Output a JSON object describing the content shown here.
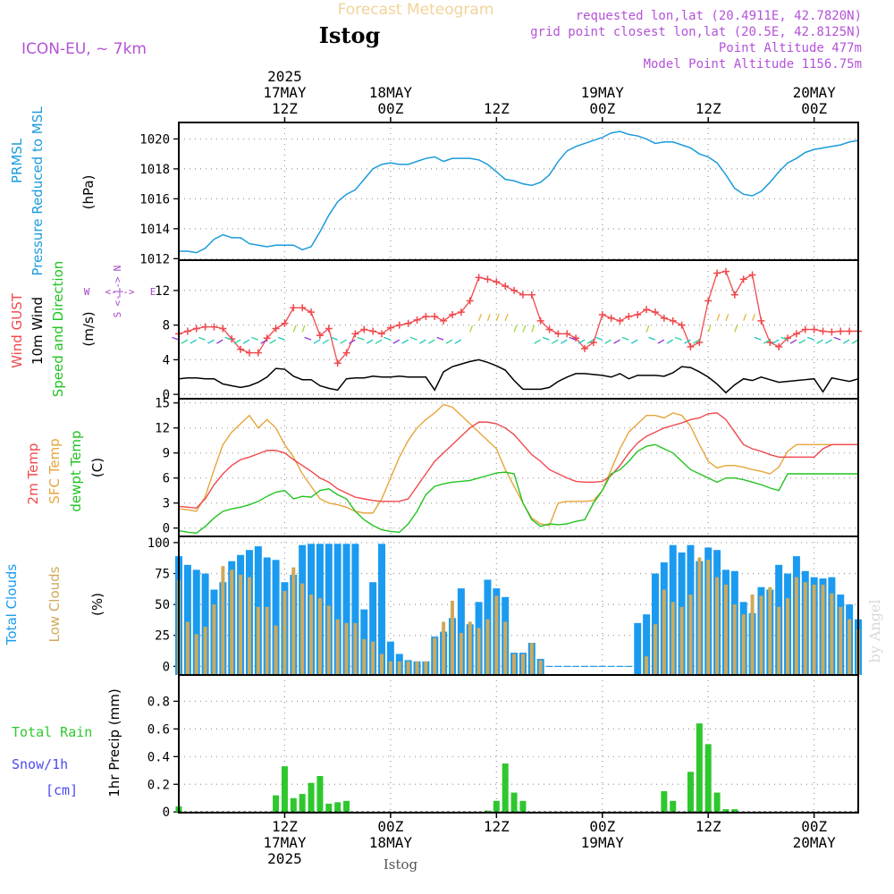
{
  "header": {
    "chart_type_label": "Forecast Meteogram",
    "location": "Istog",
    "model": "ICON-EU, ~ 7km",
    "requested": "requested lon,lat (20.4911E, 42.7820N)",
    "grid_point": "grid point closest lon,lat (20.5E, 42.8125N)",
    "point_altitude": "Point Altitude 477m",
    "model_altitude": "Model Point Altitude 1156.75m",
    "footer_location": "Istog",
    "watermark": "by Angel"
  },
  "colors": {
    "pressure": "#1b9bdc",
    "gust": "#f0484c",
    "wind": "#000000",
    "temp2m": "#f0484c",
    "sfc_temp": "#e6a53c",
    "dewpt": "#22c322",
    "total_clouds": "#1b9bf0",
    "low_clouds": "#cfa95a",
    "rain": "#2ec82e",
    "snow": "#4b4bf0",
    "label_purple": "#b452d8",
    "direction": "#a045c8"
  },
  "time_axis": {
    "top": [
      {
        "t": 12,
        "lines": [
          "2025",
          "17MAY",
          "12Z"
        ]
      },
      {
        "t": 24,
        "lines": [
          "18MAY",
          "00Z"
        ]
      },
      {
        "t": 36,
        "lines": [
          "12Z"
        ]
      },
      {
        "t": 48,
        "lines": [
          "19MAY",
          "00Z"
        ]
      },
      {
        "t": 60,
        "lines": [
          "12Z"
        ]
      },
      {
        "t": 72,
        "lines": [
          "20MAY",
          "00Z"
        ]
      }
    ],
    "bottom": [
      {
        "t": 12,
        "lines": [
          "12Z",
          "17MAY",
          "2025"
        ]
      },
      {
        "t": 24,
        "lines": [
          "00Z",
          "18MAY"
        ]
      },
      {
        "t": 36,
        "lines": [
          "12Z"
        ]
      },
      {
        "t": 48,
        "lines": [
          "00Z",
          "19MAY"
        ]
      },
      {
        "t": 60,
        "lines": [
          "12Z"
        ]
      },
      {
        "t": 72,
        "lines": [
          "00Z",
          "20MAY"
        ]
      }
    ]
  },
  "chart_data": [
    {
      "type": "line",
      "panel": "pressure",
      "title": "PRMSL Pressure Reduced to MSL",
      "ylabel": "(hPa)",
      "ylim": [
        1011.9,
        1021.1
      ],
      "yticks": [
        1012,
        1014,
        1016,
        1018,
        1020
      ],
      "x_hours_from_17may_00z": [
        0,
        1,
        2,
        3,
        4,
        5,
        6,
        7,
        8,
        9,
        10,
        11,
        12,
        13,
        14,
        15,
        16,
        17,
        18,
        19,
        20,
        21,
        22,
        23,
        24,
        25,
        26,
        27,
        28,
        29,
        30,
        31,
        32,
        33,
        34,
        35,
        36,
        37,
        38,
        39,
        40,
        41,
        42,
        43,
        44,
        45,
        46,
        47,
        48,
        49,
        50,
        51,
        52,
        53,
        54,
        55,
        56,
        57,
        58,
        59,
        60,
        61,
        62,
        63,
        64,
        65,
        66,
        67,
        68,
        69,
        70,
        71,
        72,
        73,
        74,
        75,
        76,
        77
      ],
      "series": [
        {
          "name": "PRMSL",
          "values": [
            1012.5,
            1012.5,
            1012.4,
            1012.7,
            1013.3,
            1013.6,
            1013.4,
            1013.4,
            1013.0,
            1012.9,
            1012.8,
            1012.9,
            1012.9,
            1012.9,
            1012.6,
            1012.8,
            1013.8,
            1014.9,
            1015.8,
            1016.3,
            1016.6,
            1017.3,
            1018.0,
            1018.3,
            1018.4,
            1018.3,
            1018.3,
            1018.5,
            1018.7,
            1018.8,
            1018.5,
            1018.7,
            1018.7,
            1018.7,
            1018.6,
            1018.3,
            1017.8,
            1017.3,
            1017.2,
            1017.0,
            1016.9,
            1017.1,
            1017.6,
            1018.5,
            1019.2,
            1019.5,
            1019.7,
            1019.9,
            1020.1,
            1020.4,
            1020.5,
            1020.3,
            1020.2,
            1020.0,
            1019.7,
            1019.8,
            1019.8,
            1019.6,
            1019.4,
            1019.0,
            1018.8,
            1018.4,
            1017.6,
            1016.7,
            1016.3,
            1016.2,
            1016.5,
            1017.1,
            1017.8,
            1018.4,
            1018.7,
            1019.1,
            1019.3,
            1019.4,
            1019.5,
            1019.6,
            1019.8,
            1019.9
          ]
        }
      ]
    },
    {
      "type": "line",
      "panel": "wind",
      "title": "Wind GUST / 10m Wind Speed and Direction",
      "ylabel": "(m/s)",
      "ylim": [
        -0.5,
        15.5
      ],
      "yticks": [
        0,
        4,
        8,
        12
      ],
      "direction_legend": [
        "N",
        "S",
        "W",
        "E"
      ],
      "series": [
        {
          "name": "Wind GUST",
          "values": [
            7.0,
            7.3,
            7.6,
            7.8,
            7.8,
            7.6,
            6.4,
            5.2,
            4.8,
            4.8,
            6.5,
            7.6,
            8.2,
            10.0,
            10.0,
            9.5,
            6.8,
            7.6,
            3.6,
            4.8,
            7.0,
            7.5,
            7.3,
            7.0,
            7.7,
            8.0,
            8.2,
            8.6,
            9.0,
            9.0,
            8.5,
            9.2,
            9.5,
            10.8,
            13.5,
            13.3,
            13.0,
            12.5,
            12.0,
            11.5,
            11.5,
            8.5,
            7.5,
            7.0,
            7.0,
            6.5,
            5.3,
            6.0,
            9.2,
            8.8,
            8.5,
            9.0,
            9.2,
            9.8,
            9.5,
            8.8,
            8.5,
            8.0,
            5.5,
            6.0,
            10.8,
            14.0,
            14.2,
            11.5,
            13.3,
            13.8,
            8.5,
            6.0,
            5.5,
            6.5,
            7.0,
            7.5,
            7.5,
            7.3,
            7.2,
            7.3,
            7.3,
            7.3
          ]
        },
        {
          "name": "10m Wind",
          "values": [
            1.8,
            1.9,
            1.9,
            1.8,
            1.8,
            1.2,
            1.0,
            0.8,
            1.0,
            1.4,
            2.0,
            3.0,
            2.9,
            2.1,
            1.7,
            1.7,
            1.0,
            0.7,
            0.5,
            1.8,
            1.9,
            1.9,
            2.1,
            2.0,
            2.0,
            2.1,
            2.0,
            2.0,
            2.0,
            0.5,
            2.6,
            3.2,
            3.5,
            3.8,
            4.0,
            3.7,
            3.3,
            2.8,
            1.6,
            0.6,
            0.6,
            0.6,
            0.8,
            1.5,
            2.0,
            2.4,
            2.4,
            2.3,
            2.2,
            2.0,
            2.4,
            1.8,
            2.2,
            2.2,
            2.2,
            2.1,
            2.5,
            3.2,
            3.1,
            2.6,
            2.0,
            1.2,
            0.2,
            1.1,
            1.8,
            1.6,
            2.0,
            1.7,
            1.4,
            1.5,
            1.6,
            1.7,
            1.8,
            0.3,
            1.9,
            1.7,
            1.5,
            1.8
          ]
        }
      ]
    },
    {
      "type": "line",
      "panel": "temperature",
      "title": "2m Temp / SFC Temp / dewpt Temp",
      "ylabel": "(C)",
      "ylim": [
        -1.0,
        15.5
      ],
      "yticks": [
        0,
        3,
        6,
        9,
        12,
        15
      ],
      "series": [
        {
          "name": "2m Temp",
          "values": [
            2.6,
            2.5,
            2.4,
            3.5,
            5.2,
            6.5,
            7.5,
            8.2,
            8.5,
            8.9,
            9.3,
            9.3,
            9.0,
            8.2,
            7.5,
            6.8,
            6.0,
            5.5,
            4.7,
            4.2,
            3.7,
            3.5,
            3.3,
            3.2,
            3.2,
            3.2,
            3.5,
            5.0,
            6.5,
            8.0,
            9.0,
            10.0,
            11.0,
            12.0,
            12.7,
            12.7,
            12.5,
            12.0,
            11.2,
            10.0,
            8.8,
            8.0,
            7.0,
            6.5,
            6.0,
            5.6,
            5.5,
            5.5,
            5.6,
            6.3,
            7.5,
            9.0,
            10.2,
            11.0,
            11.5,
            12.0,
            12.3,
            12.6,
            13.0,
            13.2,
            13.7,
            13.8,
            13.0,
            11.5,
            10.0,
            9.5,
            9.2,
            8.8,
            8.5,
            8.5,
            8.5,
            8.5,
            8.5,
            9.5,
            10.0,
            10.0,
            10.0,
            10.0
          ]
        },
        {
          "name": "SFC Temp",
          "values": [
            2.3,
            2.2,
            2.0,
            3.8,
            7.0,
            10.0,
            11.5,
            12.5,
            13.5,
            12.0,
            13.0,
            12.0,
            10.0,
            8.5,
            6.5,
            5.0,
            3.5,
            3.0,
            2.8,
            2.5,
            2.0,
            1.8,
            1.8,
            3.5,
            6.0,
            8.5,
            10.5,
            12.0,
            13.0,
            13.8,
            14.8,
            14.5,
            13.5,
            12.5,
            11.5,
            10.5,
            9.5,
            7.0,
            5.0,
            3.0,
            1.2,
            0.5,
            0.3,
            3.0,
            3.2,
            3.2,
            3.2,
            3.3,
            4.5,
            7.0,
            9.5,
            11.5,
            12.5,
            13.5,
            13.5,
            13.2,
            13.8,
            13.5,
            12.2,
            10.0,
            8.0,
            7.2,
            7.5,
            7.5,
            7.3,
            7.0,
            6.8,
            6.5,
            7.3,
            9.2,
            10.0,
            10.0,
            10.0,
            10.0,
            10.0,
            10.0,
            10.0,
            10.0
          ]
        },
        {
          "name": "dewpt Temp",
          "values": [
            -0.3,
            -0.5,
            -0.6,
            0.2,
            1.2,
            2.0,
            2.3,
            2.5,
            2.8,
            3.2,
            3.8,
            4.3,
            4.5,
            3.5,
            3.8,
            3.7,
            4.5,
            4.7,
            4.0,
            3.5,
            2.0,
            1.0,
            0.3,
            -0.2,
            -0.4,
            -0.5,
            0.5,
            2.0,
            4.0,
            5.0,
            5.3,
            5.5,
            5.6,
            5.7,
            6.0,
            6.3,
            6.6,
            6.7,
            6.5,
            3.0,
            1.0,
            0.2,
            0.5,
            0.4,
            0.5,
            0.8,
            1.0,
            3.0,
            4.5,
            6.5,
            7.0,
            8.0,
            9.2,
            9.8,
            10.0,
            9.5,
            9.0,
            8.0,
            7.0,
            6.5,
            6.0,
            5.5,
            6.0,
            6.0,
            5.8,
            5.5,
            5.2,
            4.8,
            4.5,
            6.5,
            6.5,
            6.5,
            6.5,
            6.5,
            6.5,
            6.5,
            6.5,
            6.5
          ]
        }
      ]
    },
    {
      "type": "bar",
      "panel": "clouds",
      "title": "Total Clouds / Low Clouds",
      "ylabel": "(%)",
      "ylim": [
        -7,
        105
      ],
      "yticks": [
        0,
        25,
        50,
        75,
        100
      ],
      "series": [
        {
          "name": "Total Clouds",
          "values": [
            89,
            82,
            78,
            75,
            62,
            68,
            85,
            90,
            94,
            97,
            88,
            86,
            68,
            74,
            98,
            99,
            99,
            99,
            99,
            99,
            99,
            46,
            68,
            99,
            20,
            10,
            5,
            4,
            4,
            24,
            28,
            39,
            63,
            34,
            52,
            70,
            63,
            56,
            11,
            11,
            19,
            6,
            0,
            0,
            0,
            0,
            0,
            0,
            0,
            0,
            0,
            0,
            35,
            42,
            75,
            84,
            98,
            92,
            98,
            85,
            96,
            94,
            78,
            77,
            52,
            43,
            64,
            62,
            82,
            75,
            89,
            77,
            72,
            71,
            72,
            58,
            50,
            38
          ]
        },
        {
          "name": "Low Clouds",
          "values": [
            70,
            36,
            26,
            32,
            50,
            81,
            78,
            74,
            72,
            48,
            48,
            33,
            61,
            80,
            67,
            58,
            55,
            49,
            38,
            35,
            35,
            22,
            20,
            10,
            4,
            4,
            4,
            4,
            4,
            23,
            36,
            53,
            27,
            36,
            31,
            38,
            57,
            36,
            10,
            10,
            19,
            5,
            0,
            0,
            0,
            0,
            0,
            0,
            0,
            0,
            0,
            0,
            0,
            8,
            34,
            62,
            52,
            48,
            58,
            88,
            86,
            72,
            66,
            50,
            42,
            58,
            57,
            64,
            48,
            55,
            72,
            68,
            66,
            66,
            59,
            48,
            38,
            30
          ]
        }
      ]
    },
    {
      "type": "bar",
      "panel": "precip",
      "title": "Total Rain / Snow/1h [cm]",
      "ylabel": "1hr Precip (mm)",
      "ylim": [
        -0.005,
        0.99
      ],
      "yticks": [
        0,
        0.2,
        0.4,
        0.6,
        0.8
      ],
      "series": [
        {
          "name": "Total Rain",
          "values": [
            0.04,
            0,
            0,
            0,
            0,
            0,
            0,
            0,
            0,
            0,
            0,
            0.12,
            0.33,
            0.1,
            0.13,
            0.21,
            0.26,
            0.06,
            0.07,
            0.08,
            0,
            0,
            0,
            0,
            0,
            0,
            0,
            0,
            0,
            0,
            0,
            0,
            0,
            0,
            0,
            0.01,
            0.08,
            0.35,
            0.14,
            0.08,
            0,
            0,
            0,
            0,
            0,
            0,
            0,
            0,
            0,
            0,
            0,
            0,
            0,
            0,
            0,
            0.15,
            0.08,
            0,
            0.29,
            0.64,
            0.49,
            0.14,
            0.02,
            0.02,
            0,
            0,
            0,
            0,
            0,
            0,
            0,
            0,
            0,
            0,
            0,
            0,
            0,
            0
          ]
        },
        {
          "name": "Snow/1h",
          "values": []
        }
      ]
    }
  ]
}
